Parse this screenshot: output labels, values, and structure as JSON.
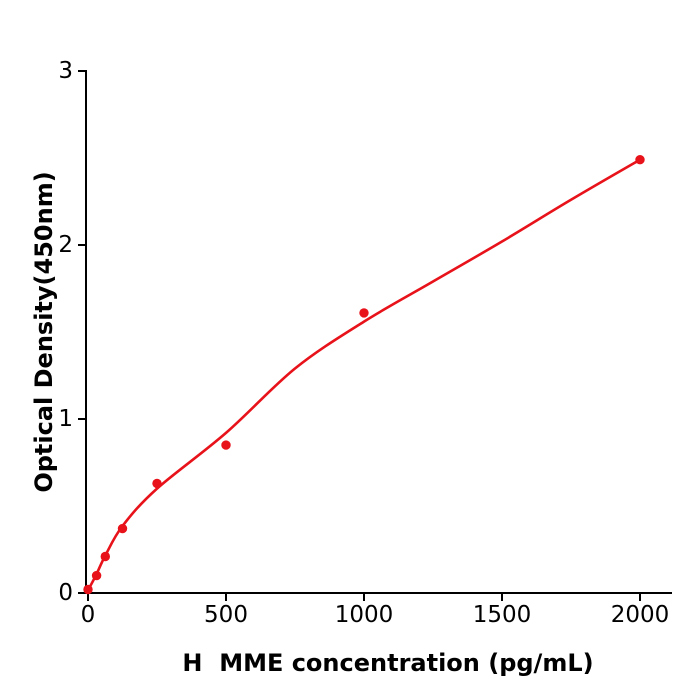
{
  "chart_data": {
    "type": "scatter",
    "title": "",
    "xlabel": "H  MME concentration (pg/mL)",
    "ylabel": "Optical Density(450nm)",
    "x_ticks": [
      0,
      500,
      1000,
      1500,
      2000
    ],
    "y_ticks": [
      0,
      1,
      2,
      3
    ],
    "xlim": [
      0,
      2115
    ],
    "ylim": [
      0,
      3
    ],
    "grid": false,
    "legend": false,
    "accent_color": "#e8121a",
    "axis_color": "#000000",
    "background_color": "#ffffff",
    "series": [
      {
        "name": "standard-points",
        "render": "points",
        "color": "#e8121a",
        "x": [
          0,
          31.25,
          62.5,
          125,
          250,
          500,
          1000,
          2000
        ],
        "y": [
          0.02,
          0.1,
          0.21,
          0.37,
          0.63,
          0.85,
          1.61,
          2.49
        ]
      },
      {
        "name": "fitted-curve",
        "render": "line",
        "color": "#e8121a",
        "x": [
          0,
          31.25,
          62.5,
          125,
          250,
          500,
          750,
          1000,
          1250,
          1500,
          1750,
          2000
        ],
        "y": [
          0.015,
          0.11,
          0.215,
          0.385,
          0.6,
          0.92,
          1.29,
          1.56,
          1.79,
          2.02,
          2.26,
          2.49
        ]
      }
    ]
  }
}
